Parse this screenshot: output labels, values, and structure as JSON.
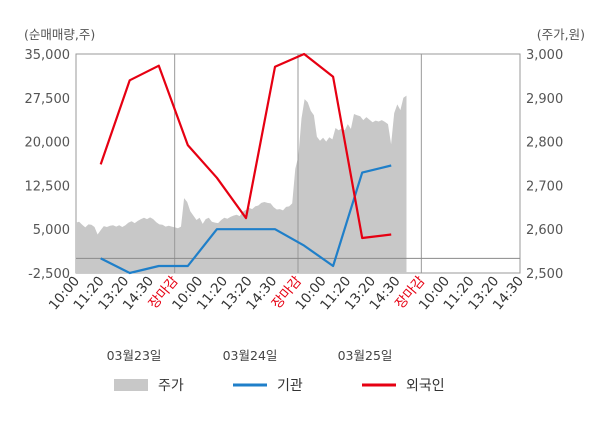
{
  "chart_data": {
    "type": "line",
    "left_axis_unit": "(순매매량,주)",
    "right_axis_unit": "(주가,원)",
    "left_axis": {
      "ylim": [
        -2500,
        35000
      ],
      "ticks": [
        "35,000",
        "27,500",
        "20,000",
        "12,500",
        "5,000",
        "-2,500"
      ]
    },
    "right_axis": {
      "ylim": [
        2500,
        3000
      ],
      "ticks": [
        "3,000",
        "2,900",
        "2,800",
        "2,700",
        "2,600",
        "2,500"
      ]
    },
    "x_ticks": [
      {
        "label": "10:00",
        "color": "#333333"
      },
      {
        "label": "11:20",
        "color": "#333333"
      },
      {
        "label": "13:20",
        "color": "#333333"
      },
      {
        "label": "14:30",
        "color": "#333333"
      },
      {
        "label": "장마감",
        "color": "#e60012"
      },
      {
        "label": "10:00",
        "color": "#333333"
      },
      {
        "label": "11:20",
        "color": "#333333"
      },
      {
        "label": "13:20",
        "color": "#333333"
      },
      {
        "label": "14:30",
        "color": "#333333"
      },
      {
        "label": "장마감",
        "color": "#e60012"
      },
      {
        "label": "10:00",
        "color": "#333333"
      },
      {
        "label": "11:20",
        "color": "#333333"
      },
      {
        "label": "13:20",
        "color": "#333333"
      },
      {
        "label": "14:30",
        "color": "#333333"
      },
      {
        "label": "장마감",
        "color": "#e60012"
      },
      {
        "label": "10:00",
        "color": "#333333"
      },
      {
        "label": "11:20",
        "color": "#333333"
      },
      {
        "label": "13:20",
        "color": "#333333"
      },
      {
        "label": "14:30",
        "color": "#333333"
      }
    ],
    "date_labels": [
      "03월23일",
      "03월24일",
      "03월25일"
    ],
    "series": [
      {
        "name": "기관",
        "color": "#1f7fc9",
        "axis": "left",
        "values": [
          0,
          -2500,
          -1300,
          -1300,
          5000,
          5000,
          5000,
          2200,
          -1300,
          14700,
          15900
        ]
      },
      {
        "name": "외국인",
        "color": "#e60012",
        "axis": "left",
        "values": [
          16100,
          30500,
          33000,
          19400,
          13800,
          6900,
          32800,
          35000,
          31100,
          3500,
          4100
        ]
      },
      {
        "name": "주가",
        "color": "#c8c8c8",
        "axis": "right",
        "type": "area",
        "values": [
          2615,
          2617,
          2610,
          2604,
          2611,
          2610,
          2605,
          2588,
          2598,
          2607,
          2605,
          2608,
          2609,
          2606,
          2609,
          2605,
          2609,
          2615,
          2618,
          2614,
          2619,
          2623,
          2626,
          2623,
          2627,
          2623,
          2616,
          2611,
          2610,
          2606,
          2608,
          2606,
          2604,
          2602,
          2606,
          2671,
          2662,
          2641,
          2631,
          2621,
          2626,
          2612,
          2623,
          2626,
          2617,
          2615,
          2614,
          2621,
          2626,
          2624,
          2628,
          2631,
          2633,
          2630,
          2640,
          2644,
          2649,
          2646,
          2652,
          2654,
          2660,
          2662,
          2660,
          2659,
          2650,
          2645,
          2646,
          2643,
          2651,
          2652,
          2659,
          2738,
          2767,
          2853,
          2897,
          2890,
          2870,
          2860,
          2811,
          2802,
          2809,
          2800,
          2810,
          2805,
          2831,
          2826,
          2830,
          2826,
          2840,
          2829,
          2863,
          2860,
          2858,
          2849,
          2856,
          2850,
          2844,
          2848,
          2846,
          2849,
          2845,
          2840,
          2794,
          2865,
          2885,
          2872,
          2900,
          2905
        ]
      }
    ],
    "legend": [
      {
        "label": "주가",
        "color": "#c8c8c8",
        "kind": "area"
      },
      {
        "label": "기관",
        "color": "#1f7fc9",
        "kind": "line"
      },
      {
        "label": "외국인",
        "color": "#e60012",
        "kind": "line"
      }
    ]
  }
}
